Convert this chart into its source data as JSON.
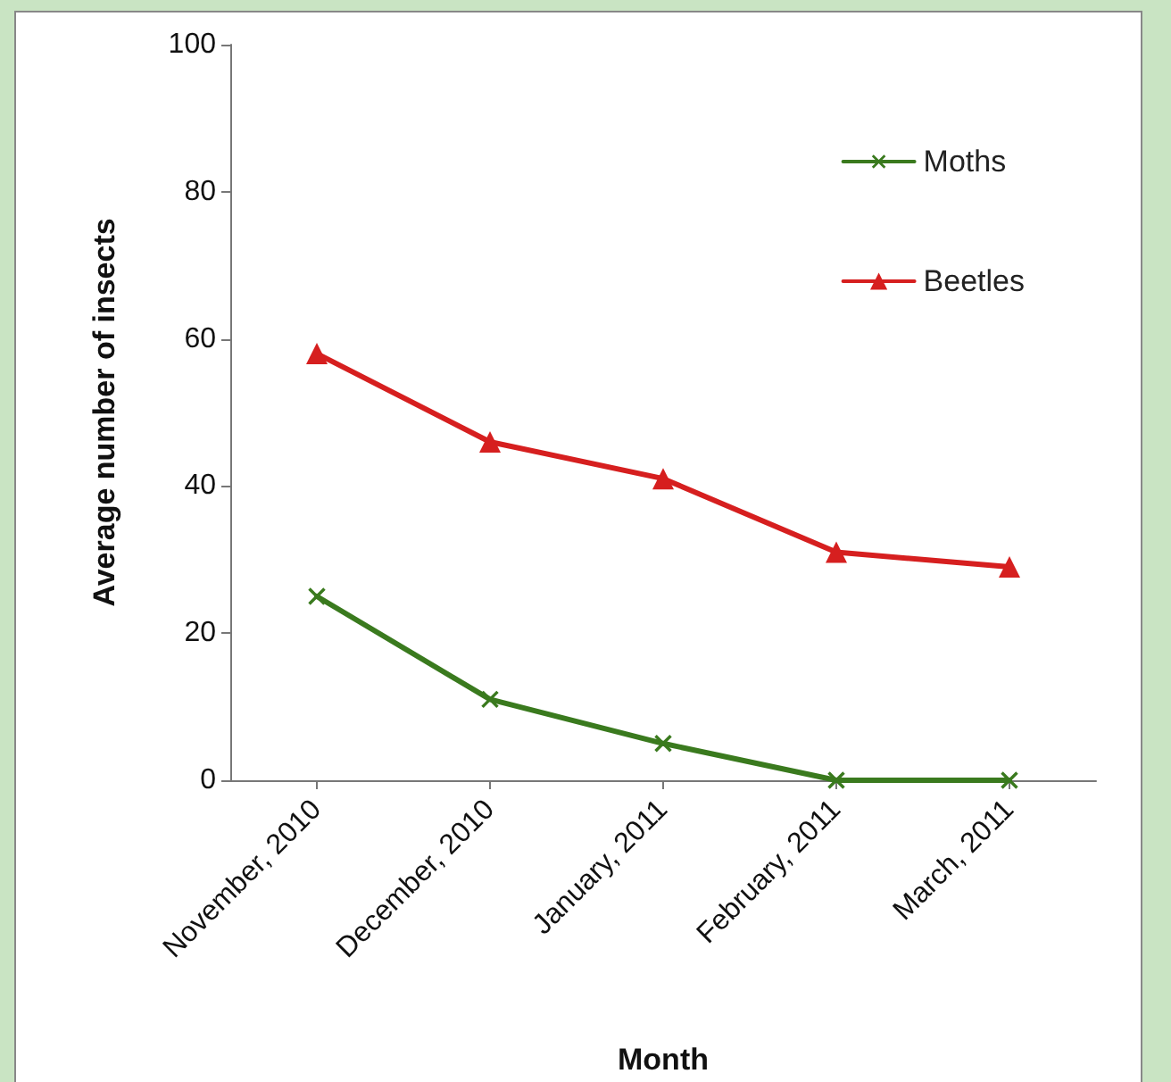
{
  "chart_data": {
    "type": "line",
    "xlabel": "Month",
    "ylabel": "Average number of insects",
    "categories": [
      "November, 2010",
      "December, 2010",
      "January, 2011",
      "February, 2011",
      "March, 2011"
    ],
    "series": [
      {
        "name": "Moths",
        "color": "#3a7a1e",
        "values": [
          25,
          11,
          5,
          0,
          0
        ],
        "marker": "cross"
      },
      {
        "name": "Beetles",
        "color": "#d61f1f",
        "values": [
          58,
          46,
          41,
          31,
          29
        ],
        "marker": "triangle"
      }
    ],
    "ylim": [
      0,
      100
    ],
    "yticks": [
      0,
      20,
      40,
      60,
      80,
      100
    ],
    "grid": false,
    "legend": "top right",
    "line_style": "solid"
  }
}
